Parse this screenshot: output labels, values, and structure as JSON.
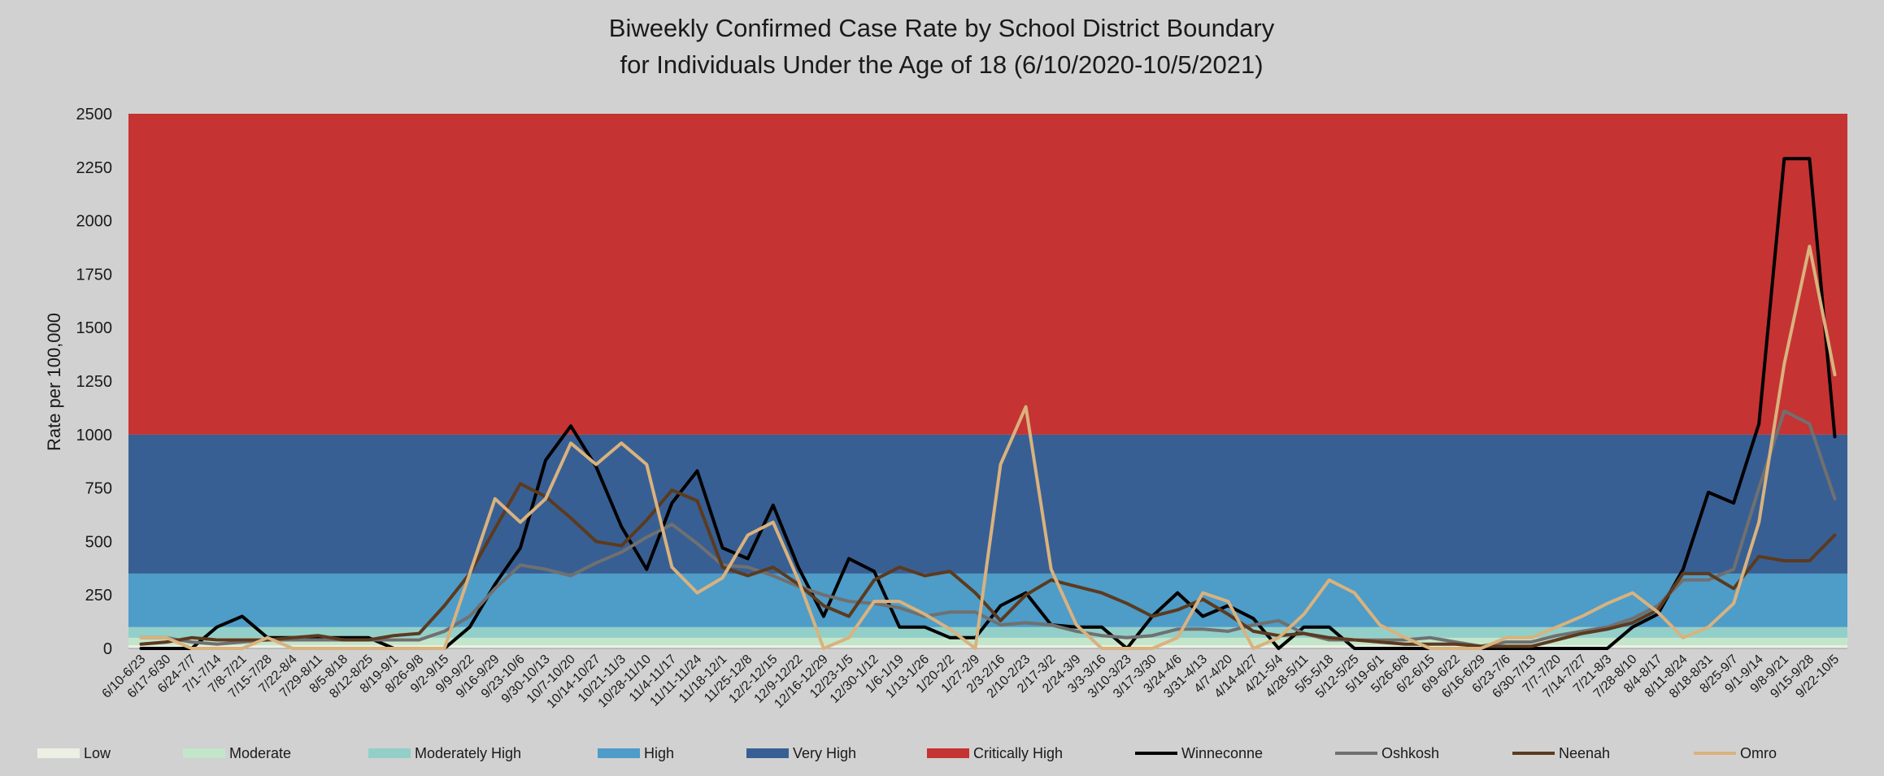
{
  "chart_data": {
    "type": "line",
    "title": "Biweekly Confirmed Case Rate by School District Boundary",
    "subtitle": "for Individuals Under the Age of 18  (6/10/2020-10/5/2021)",
    "xlabel": "",
    "ylabel": "Rate per 100,000",
    "ylim": [
      0,
      2500
    ],
    "yticks": [
      0,
      250,
      500,
      750,
      1000,
      1250,
      1500,
      1750,
      2000,
      2250,
      2500
    ],
    "grid": false,
    "legend_position": "bottom",
    "categories": [
      "6/10-6/23",
      "6/17-6/30",
      "6/24-7/7",
      "7/1-7/14",
      "7/8-7/21",
      "7/15-7/28",
      "7/22-8/4",
      "7/29-8/11",
      "8/5-8/18",
      "8/12-8/25",
      "8/19-9/1",
      "8/26-9/8",
      "9/2-9/15",
      "9/9-9/22",
      "9/16-9/29",
      "9/23-10/6",
      "9/30-10/13",
      "10/7-10/20",
      "10/14-10/27",
      "10/21-11/3",
      "10/28-11/10",
      "11/4-11/17",
      "11/11-11/24",
      "11/18-12/1",
      "11/25-12/8",
      "12/2-12/15",
      "12/9-12/22",
      "12/16-12/29",
      "12/23-1/5",
      "12/30-1/12",
      "1/6-1/19",
      "1/13-1/26",
      "1/20-2/2",
      "1/27-2/9",
      "2/3-2/16",
      "2/10-2/23",
      "2/17-3/2",
      "2/24-3/9",
      "3/3-3/16",
      "3/10-3/23",
      "3/17-3/30",
      "3/24-4/6",
      "3/31-4/13",
      "4/7-4/20",
      "4/14-4/27",
      "4/21-5/4",
      "4/28-5/11",
      "5/5-5/18",
      "5/12-5/25",
      "5/19-6/1",
      "5/26-6/8",
      "6/2-6/15",
      "6/9-6/22",
      "6/16-6/29",
      "6/23-7/6",
      "6/30-7/13",
      "7/7-7/20",
      "7/14-7/27",
      "7/21-8/3",
      "7/28-8/10",
      "8/4-8/17",
      "8/11-8/24",
      "8/18-8/31",
      "8/25-9/7",
      "9/1-9/14",
      "9/8-9/21",
      "9/15-9/28",
      "9/22-10/5"
    ],
    "bands": [
      {
        "name": "Low",
        "from": 0,
        "to": 15,
        "color": "#ecf0e4"
      },
      {
        "name": "Moderate",
        "from": 15,
        "to": 50,
        "color": "#c3e6cb"
      },
      {
        "name": "Moderately High",
        "from": 50,
        "to": 100,
        "color": "#93cfc9"
      },
      {
        "name": "High",
        "from": 100,
        "to": 350,
        "color": "#4e9cc8"
      },
      {
        "name": "Very High",
        "from": 350,
        "to": 1000,
        "color": "#385f93"
      },
      {
        "name": "Critically High",
        "from": 1000,
        "to": 2500,
        "color": "#c53333"
      }
    ],
    "series": [
      {
        "name": "Winneconne",
        "color": "#000000",
        "values": [
          0,
          0,
          0,
          100,
          150,
          50,
          50,
          50,
          50,
          50,
          0,
          0,
          0,
          100,
          300,
          470,
          880,
          1040,
          850,
          570,
          370,
          680,
          830,
          470,
          420,
          670,
          380,
          150,
          420,
          360,
          100,
          100,
          50,
          50,
          200,
          260,
          110,
          100,
          100,
          0,
          150,
          260,
          150,
          200,
          140,
          0,
          100,
          100,
          0,
          0,
          0,
          0,
          0,
          0,
          0,
          0,
          0,
          0,
          0,
          100,
          160,
          370,
          730,
          680,
          1050,
          2290,
          2290,
          990
        ]
      },
      {
        "name": "Oshkosh",
        "color": "#707070",
        "values": [
          50,
          50,
          30,
          20,
          30,
          40,
          40,
          40,
          40,
          40,
          40,
          40,
          80,
          150,
          280,
          390,
          370,
          340,
          400,
          450,
          520,
          580,
          490,
          390,
          380,
          340,
          290,
          250,
          220,
          210,
          190,
          150,
          170,
          170,
          110,
          120,
          110,
          80,
          60,
          50,
          60,
          90,
          90,
          80,
          110,
          130,
          70,
          40,
          40,
          40,
          40,
          50,
          30,
          10,
          30,
          30,
          60,
          80,
          100,
          140,
          200,
          320,
          320,
          370,
          750,
          1110,
          1050,
          700
        ]
      },
      {
        "name": "Neenah",
        "color": "#5c3a1e",
        "values": [
          20,
          30,
          50,
          40,
          40,
          40,
          50,
          60,
          40,
          40,
          60,
          70,
          200,
          350,
          560,
          770,
          710,
          610,
          500,
          480,
          600,
          740,
          690,
          380,
          340,
          380,
          300,
          200,
          150,
          320,
          380,
          340,
          360,
          260,
          130,
          250,
          320,
          290,
          260,
          210,
          150,
          180,
          230,
          160,
          80,
          60,
          70,
          50,
          40,
          30,
          20,
          20,
          20,
          10,
          10,
          10,
          40,
          70,
          90,
          120,
          180,
          350,
          350,
          280,
          430,
          410,
          410,
          530
        ]
      },
      {
        "name": "Omro",
        "color": "#d9b27e",
        "values": [
          50,
          50,
          0,
          0,
          0,
          50,
          0,
          0,
          0,
          0,
          0,
          0,
          0,
          350,
          700,
          590,
          700,
          960,
          860,
          960,
          860,
          380,
          260,
          330,
          530,
          590,
          320,
          0,
          50,
          220,
          220,
          160,
          90,
          0,
          860,
          1130,
          370,
          110,
          0,
          0,
          0,
          50,
          260,
          220,
          0,
          50,
          160,
          320,
          260,
          110,
          50,
          0,
          0,
          0,
          50,
          50,
          100,
          150,
          210,
          260,
          170,
          50,
          100,
          210,
          590,
          1330,
          1880,
          1280
        ]
      }
    ],
    "legend": [
      {
        "name": "Low",
        "kind": "band",
        "color": "#ecf0e4"
      },
      {
        "name": "Moderate",
        "kind": "band",
        "color": "#c3e6cb"
      },
      {
        "name": "Moderately High",
        "kind": "band",
        "color": "#93cfc9"
      },
      {
        "name": "High",
        "kind": "band",
        "color": "#4e9cc8"
      },
      {
        "name": "Very High",
        "kind": "band",
        "color": "#385f93"
      },
      {
        "name": "Critically High",
        "kind": "band",
        "color": "#c53333"
      },
      {
        "name": "Winneconne",
        "kind": "line",
        "color": "#000000"
      },
      {
        "name": "Oshkosh",
        "kind": "line",
        "color": "#707070"
      },
      {
        "name": "Neenah",
        "kind": "line",
        "color": "#5c3a1e"
      },
      {
        "name": "Omro",
        "kind": "line",
        "color": "#d9b27e"
      }
    ]
  }
}
